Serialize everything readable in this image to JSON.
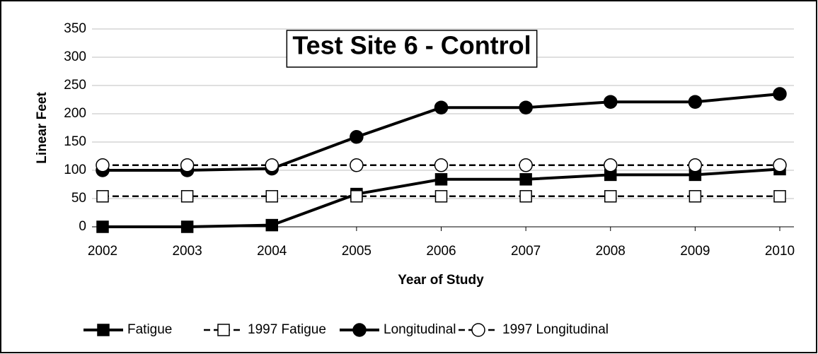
{
  "chart_data": {
    "type": "line",
    "title": "Test Site 6 - Control",
    "x_label": "Year of Study",
    "y_label": "Linear Feet",
    "categories": [
      "2002",
      "2003",
      "2004",
      "2005",
      "2006",
      "2007",
      "2008",
      "2009",
      "2010"
    ],
    "ylim": [
      0,
      350
    ],
    "yticks": [
      0,
      50,
      100,
      150,
      200,
      250,
      300,
      350
    ],
    "grid": true,
    "legend": "bottom",
    "series": [
      {
        "name": "Fatigue",
        "color": "#000000",
        "dashed": false,
        "marker": "square",
        "filled": true,
        "values": [
          0,
          0,
          3,
          58,
          84,
          84,
          92,
          92,
          102
        ]
      },
      {
        "name": "1997 Fatigue",
        "color": "#000000",
        "dashed": true,
        "marker": "square",
        "filled": false,
        "values": [
          54,
          54,
          54,
          54,
          54,
          54,
          54,
          54,
          54
        ]
      },
      {
        "name": "Longitudinal",
        "color": "#000000",
        "dashed": false,
        "marker": "circle",
        "filled": true,
        "values": [
          100,
          100,
          103,
          159,
          211,
          211,
          221,
          221,
          235
        ]
      },
      {
        "name": "1997 Longitudinal",
        "color": "#000000",
        "dashed": true,
        "marker": "circle",
        "filled": false,
        "values": [
          109,
          109,
          109,
          109,
          109,
          109,
          109,
          109,
          109
        ]
      }
    ]
  }
}
